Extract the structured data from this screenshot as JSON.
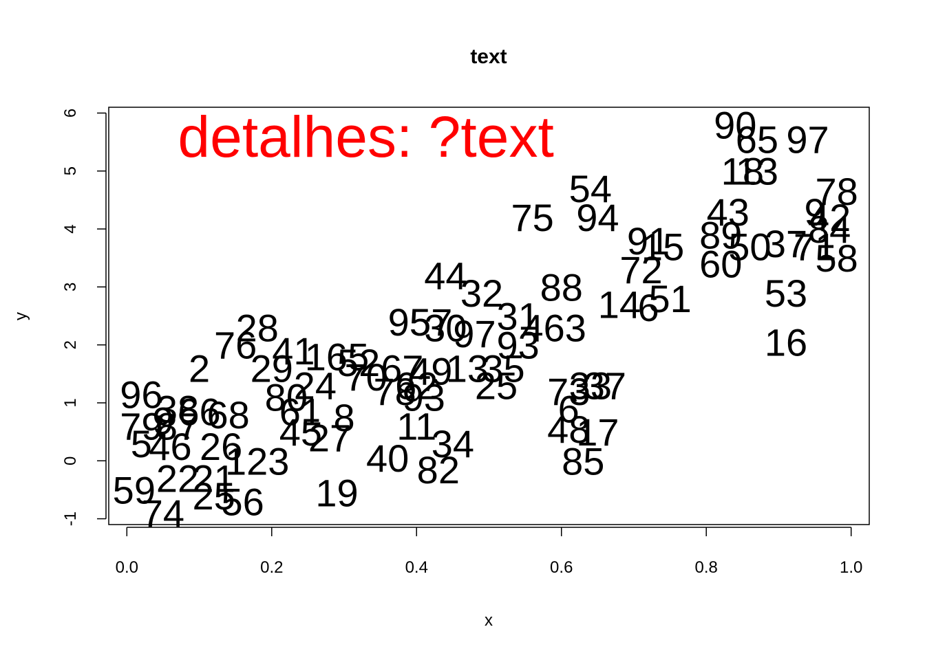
{
  "chart_data": {
    "type": "scatter",
    "title": "text",
    "xlabel": "x",
    "ylabel": "y",
    "xlim": [
      -0.025,
      1.025
    ],
    "ylim": [
      -1.1,
      6.1
    ],
    "grid": false,
    "x_ticks": [
      "0.0",
      "0.2",
      "0.4",
      "0.6",
      "0.8",
      "1.0"
    ],
    "y_ticks": [
      "-1",
      "0",
      "1",
      "2",
      "3",
      "4",
      "5",
      "6"
    ],
    "annotation": {
      "text": "detalhes: ?text",
      "x": 0.33,
      "y": 5.6,
      "color": "#ff0000"
    },
    "points": [
      {
        "label": "96",
        "x": 0.02,
        "y": 1.15
      },
      {
        "label": "2",
        "x": 0.1,
        "y": 1.6
      },
      {
        "label": "38",
        "x": 0.07,
        "y": 0.9
      },
      {
        "label": "66",
        "x": 0.1,
        "y": 0.85
      },
      {
        "label": "68",
        "x": 0.14,
        "y": 0.8
      },
      {
        "label": "79",
        "x": 0.02,
        "y": 0.6
      },
      {
        "label": "9",
        "x": 0.05,
        "y": 0.7
      },
      {
        "label": "87",
        "x": 0.07,
        "y": 0.6
      },
      {
        "label": "5",
        "x": 0.02,
        "y": 0.3
      },
      {
        "label": "46",
        "x": 0.06,
        "y": 0.25
      },
      {
        "label": "26",
        "x": 0.13,
        "y": 0.25
      },
      {
        "label": "123",
        "x": 0.18,
        "y": 0.0
      },
      {
        "label": "59",
        "x": 0.01,
        "y": -0.5
      },
      {
        "label": "22",
        "x": 0.07,
        "y": -0.3
      },
      {
        "label": "21",
        "x": 0.12,
        "y": -0.3
      },
      {
        "label": "74",
        "x": 0.05,
        "y": -0.9
      },
      {
        "label": "25",
        "x": 0.12,
        "y": -0.6
      },
      {
        "label": "56",
        "x": 0.16,
        "y": -0.7
      },
      {
        "label": "76",
        "x": 0.15,
        "y": 2.0
      },
      {
        "label": "28",
        "x": 0.18,
        "y": 2.3
      },
      {
        "label": "41",
        "x": 0.23,
        "y": 1.9
      },
      {
        "label": "29",
        "x": 0.2,
        "y": 1.6
      },
      {
        "label": "165",
        "x": 0.29,
        "y": 1.8
      },
      {
        "label": "80",
        "x": 0.22,
        "y": 1.1
      },
      {
        "label": "24",
        "x": 0.26,
        "y": 1.3
      },
      {
        "label": "61",
        "x": 0.24,
        "y": 0.85
      },
      {
        "label": "8",
        "x": 0.3,
        "y": 0.75
      },
      {
        "label": "45",
        "x": 0.24,
        "y": 0.5
      },
      {
        "label": "27",
        "x": 0.28,
        "y": 0.4
      },
      {
        "label": "19",
        "x": 0.29,
        "y": -0.55
      },
      {
        "label": "52",
        "x": 0.32,
        "y": 1.7
      },
      {
        "label": "70",
        "x": 0.33,
        "y": 1.45
      },
      {
        "label": "40",
        "x": 0.36,
        "y": 0.05
      },
      {
        "label": "95",
        "x": 0.39,
        "y": 2.4
      },
      {
        "label": "57",
        "x": 0.42,
        "y": 2.4
      },
      {
        "label": "30",
        "x": 0.44,
        "y": 2.3
      },
      {
        "label": "67",
        "x": 0.38,
        "y": 1.6
      },
      {
        "label": "49",
        "x": 0.42,
        "y": 1.55
      },
      {
        "label": "62",
        "x": 0.4,
        "y": 1.3
      },
      {
        "label": "78",
        "x": 0.37,
        "y": 1.2
      },
      {
        "label": "93",
        "x": 0.41,
        "y": 1.1
      },
      {
        "label": "11",
        "x": 0.4,
        "y": 0.6
      },
      {
        "label": "34",
        "x": 0.45,
        "y": 0.3
      },
      {
        "label": "82",
        "x": 0.43,
        "y": -0.15
      },
      {
        "label": "44",
        "x": 0.44,
        "y": 3.2
      },
      {
        "label": "32",
        "x": 0.49,
        "y": 2.9
      },
      {
        "label": "31",
        "x": 0.54,
        "y": 2.5
      },
      {
        "label": "97",
        "x": 0.48,
        "y": 2.2
      },
      {
        "label": "13",
        "x": 0.47,
        "y": 1.6
      },
      {
        "label": "93",
        "x": 0.54,
        "y": 2.0
      },
      {
        "label": "35",
        "x": 0.52,
        "y": 1.6
      },
      {
        "label": "25",
        "x": 0.51,
        "y": 1.3
      },
      {
        "label": "75",
        "x": 0.56,
        "y": 4.2
      },
      {
        "label": "88",
        "x": 0.6,
        "y": 3.0
      },
      {
        "label": "463",
        "x": 0.59,
        "y": 2.3
      },
      {
        "label": "54",
        "x": 0.64,
        "y": 4.7
      },
      {
        "label": "94",
        "x": 0.65,
        "y": 4.2
      },
      {
        "label": "73",
        "x": 0.61,
        "y": 1.2
      },
      {
        "label": "33",
        "x": 0.64,
        "y": 1.3
      },
      {
        "label": "37",
        "x": 0.66,
        "y": 1.3
      },
      {
        "label": "6",
        "x": 0.61,
        "y": 0.9
      },
      {
        "label": "48",
        "x": 0.61,
        "y": 0.55
      },
      {
        "label": "17",
        "x": 0.65,
        "y": 0.5
      },
      {
        "label": "85",
        "x": 0.63,
        "y": 0.0
      },
      {
        "label": "91",
        "x": 0.72,
        "y": 3.8
      },
      {
        "label": "15",
        "x": 0.74,
        "y": 3.7
      },
      {
        "label": "72",
        "x": 0.71,
        "y": 3.3
      },
      {
        "label": "14",
        "x": 0.68,
        "y": 2.7
      },
      {
        "label": "6",
        "x": 0.72,
        "y": 2.65
      },
      {
        "label": "51",
        "x": 0.75,
        "y": 2.8
      },
      {
        "label": "90",
        "x": 0.84,
        "y": 5.8
      },
      {
        "label": "65",
        "x": 0.87,
        "y": 5.55
      },
      {
        "label": "97",
        "x": 0.94,
        "y": 5.55
      },
      {
        "label": "18",
        "x": 0.85,
        "y": 5.0
      },
      {
        "label": "13",
        "x": 0.87,
        "y": 5.0
      },
      {
        "label": "43",
        "x": 0.83,
        "y": 4.3
      },
      {
        "label": "89",
        "x": 0.82,
        "y": 3.9
      },
      {
        "label": "50",
        "x": 0.86,
        "y": 3.7
      },
      {
        "label": "37",
        "x": 0.91,
        "y": 3.75
      },
      {
        "label": "60",
        "x": 0.82,
        "y": 3.4
      },
      {
        "label": "53",
        "x": 0.91,
        "y": 2.9
      },
      {
        "label": "16",
        "x": 0.91,
        "y": 2.05
      },
      {
        "label": "78",
        "x": 0.98,
        "y": 4.65
      },
      {
        "label": "9",
        "x": 0.95,
        "y": 4.3
      },
      {
        "label": "42",
        "x": 0.97,
        "y": 4.2
      },
      {
        "label": "84",
        "x": 0.97,
        "y": 4.0
      },
      {
        "label": "71",
        "x": 0.95,
        "y": 3.7
      },
      {
        "label": "58",
        "x": 0.98,
        "y": 3.5
      }
    ]
  }
}
